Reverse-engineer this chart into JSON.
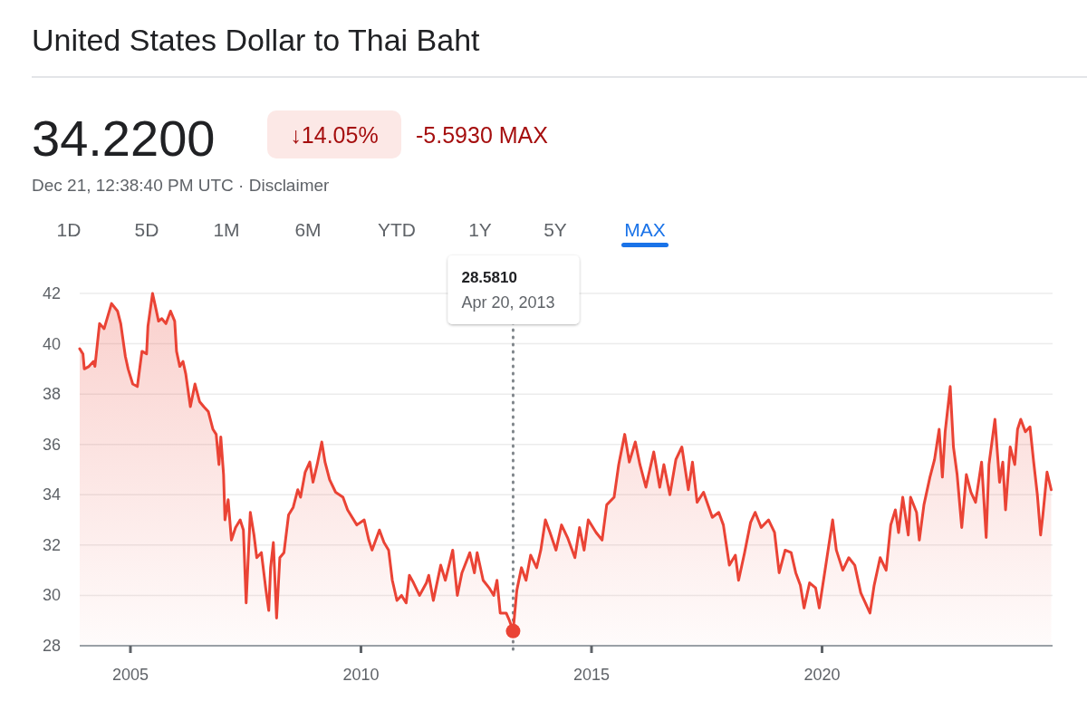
{
  "chart_data": {
    "type": "area",
    "title": "United States Dollar to Thai Baht",
    "annotations": [
      "34.2200",
      "↓14.05%",
      "-5.5930 MAX",
      "Dec 21, 12:38:40 PM UTC · Disclaimer",
      "1D",
      "5D",
      "1M",
      "6M",
      "YTD",
      "1Y",
      "5Y",
      "MAX",
      "28.5810",
      "Apr 20, 2013"
    ],
    "xlim": [
      2003.9,
      2025.0
    ],
    "xticks": [
      2005,
      2010,
      2015,
      2020
    ],
    "ylim": [
      28,
      42
    ],
    "yticks": [
      28,
      30,
      32,
      34,
      36,
      38,
      40,
      42
    ],
    "grid": "y",
    "ref_lines": [
      {
        "axis": "x",
        "value": 2013.3,
        "color": "#80868b",
        "line_style": "dotted"
      }
    ],
    "series": [
      {
        "type": "area",
        "color": "#ea4335",
        "x": [
          2003.9,
          2003.97,
          2004.0,
          2004.1,
          2004.2,
          2004.23,
          2004.33,
          2004.43,
          2004.59,
          2004.72,
          2004.79,
          2004.89,
          2004.95,
          2005.05,
          2005.15,
          2005.25,
          2005.35,
          2005.38,
          2005.48,
          2005.54,
          2005.61,
          2005.68,
          2005.77,
          2005.87,
          2005.96,
          2006.0,
          2006.07,
          2006.14,
          2006.2,
          2006.3,
          2006.4,
          2006.5,
          2006.59,
          2006.69,
          2006.79,
          2006.86,
          2006.92,
          2006.96,
          2007.02,
          2007.05,
          2007.12,
          2007.19,
          2007.28,
          2007.38,
          2007.45,
          2007.51,
          2007.6,
          2007.68,
          2007.74,
          2007.84,
          2007.94,
          2008.0,
          2008.04,
          2008.1,
          2008.17,
          2008.24,
          2008.33,
          2008.43,
          2008.53,
          2008.63,
          2008.69,
          2008.79,
          2008.89,
          2008.96,
          2009.05,
          2009.15,
          2009.22,
          2009.32,
          2009.45,
          2009.61,
          2009.71,
          2009.91,
          2010.07,
          2010.17,
          2010.24,
          2010.4,
          2010.5,
          2010.6,
          2010.68,
          2010.78,
          2010.88,
          2010.98,
          2011.05,
          2011.14,
          2011.27,
          2011.42,
          2011.47,
          2011.57,
          2011.73,
          2011.83,
          2011.99,
          2012.09,
          2012.19,
          2012.36,
          2012.46,
          2012.52,
          2012.65,
          2012.78,
          2012.88,
          2012.95,
          2013.02,
          2013.15,
          2013.22,
          2013.3,
          2013.38,
          2013.48,
          2013.58,
          2013.68,
          2013.81,
          2013.9,
          2014.0,
          2014.1,
          2014.23,
          2014.35,
          2014.48,
          2014.64,
          2014.74,
          2014.84,
          2014.93,
          2015.1,
          2015.23,
          2015.33,
          2015.49,
          2015.59,
          2015.72,
          2015.82,
          2015.95,
          2016.05,
          2016.18,
          2016.35,
          2016.48,
          2016.57,
          2016.7,
          2016.83,
          2016.96,
          2017.1,
          2017.19,
          2017.29,
          2017.43,
          2017.62,
          2017.76,
          2017.86,
          2017.99,
          2018.12,
          2018.19,
          2018.32,
          2018.45,
          2018.55,
          2018.68,
          2018.84,
          2018.97,
          2019.07,
          2019.2,
          2019.33,
          2019.43,
          2019.53,
          2019.61,
          2019.73,
          2019.86,
          2019.94,
          2020.09,
          2020.23,
          2020.31,
          2020.45,
          2020.58,
          2020.71,
          2020.84,
          2021.04,
          2021.13,
          2021.26,
          2021.39,
          2021.49,
          2021.59,
          2021.66,
          2021.75,
          2021.87,
          2021.92,
          2022.05,
          2022.11,
          2022.21,
          2022.34,
          2022.44,
          2022.54,
          2022.61,
          2022.67,
          2022.78,
          2022.85,
          2022.93,
          2023.03,
          2023.13,
          2023.23,
          2023.33,
          2023.46,
          2023.56,
          2023.62,
          2023.75,
          2023.85,
          2023.92,
          2023.98,
          2024.08,
          2024.18,
          2024.24,
          2024.31,
          2024.41,
          2024.51,
          2024.59,
          2024.67,
          2024.74,
          2024.79,
          2024.88,
          2024.97
        ],
        "values": [
          39.8,
          39.6,
          39.0,
          39.1,
          39.3,
          39.1,
          40.8,
          40.6,
          41.6,
          41.3,
          40.8,
          39.5,
          39.0,
          38.4,
          38.3,
          39.7,
          39.6,
          40.7,
          42.0,
          41.5,
          40.9,
          41.0,
          40.8,
          41.3,
          40.9,
          39.7,
          39.1,
          39.3,
          38.8,
          37.5,
          38.4,
          37.7,
          37.5,
          37.3,
          36.6,
          36.4,
          35.2,
          36.3,
          34.8,
          33.0,
          33.8,
          32.2,
          32.7,
          33.0,
          32.6,
          29.7,
          33.3,
          32.4,
          31.5,
          31.7,
          30.2,
          29.4,
          31.1,
          32.1,
          29.1,
          31.5,
          31.7,
          33.2,
          33.5,
          34.2,
          33.9,
          34.9,
          35.3,
          34.5,
          35.2,
          36.1,
          35.3,
          34.6,
          34.1,
          33.9,
          33.4,
          32.8,
          33.0,
          32.2,
          31.8,
          32.6,
          32.1,
          31.8,
          30.6,
          29.8,
          30.0,
          29.7,
          30.8,
          30.5,
          30.0,
          30.5,
          30.8,
          29.8,
          31.2,
          30.6,
          31.8,
          30.0,
          30.9,
          31.7,
          30.9,
          31.7,
          30.6,
          30.3,
          30.0,
          30.6,
          29.3,
          29.3,
          29.0,
          28.6,
          30.2,
          31.1,
          30.6,
          31.6,
          31.1,
          31.8,
          33.0,
          32.5,
          31.8,
          32.8,
          32.3,
          31.5,
          32.7,
          31.8,
          33.0,
          32.5,
          32.2,
          33.6,
          33.9,
          35.2,
          36.4,
          35.3,
          36.1,
          35.2,
          34.3,
          35.7,
          34.3,
          35.2,
          34.0,
          35.4,
          35.9,
          34.2,
          35.3,
          33.7,
          34.1,
          33.1,
          33.3,
          32.8,
          31.2,
          31.6,
          30.6,
          31.7,
          32.9,
          33.3,
          32.7,
          33.0,
          32.5,
          30.9,
          31.8,
          31.7,
          30.9,
          30.4,
          29.5,
          30.5,
          30.3,
          29.5,
          31.3,
          33.0,
          31.8,
          31.0,
          31.5,
          31.2,
          30.1,
          29.3,
          30.4,
          31.5,
          31.0,
          32.8,
          33.4,
          32.5,
          33.9,
          32.4,
          33.9,
          33.3,
          32.2,
          33.6,
          34.7,
          35.4,
          36.6,
          34.7,
          36.5,
          38.3,
          35.9,
          34.8,
          32.7,
          34.8,
          34.1,
          33.7,
          35.3,
          32.3,
          35.2,
          37.0,
          34.5,
          35.3,
          33.4,
          35.9,
          35.2,
          36.6,
          37.0,
          36.5,
          36.7,
          35.3,
          34.0,
          32.4,
          33.2,
          34.9,
          34.2
        ]
      },
      {
        "type": "scatter",
        "color": "#ea4335",
        "marker": "circle",
        "x": [
          2013.3
        ],
        "values": [
          28.581
        ]
      }
    ]
  }
}
